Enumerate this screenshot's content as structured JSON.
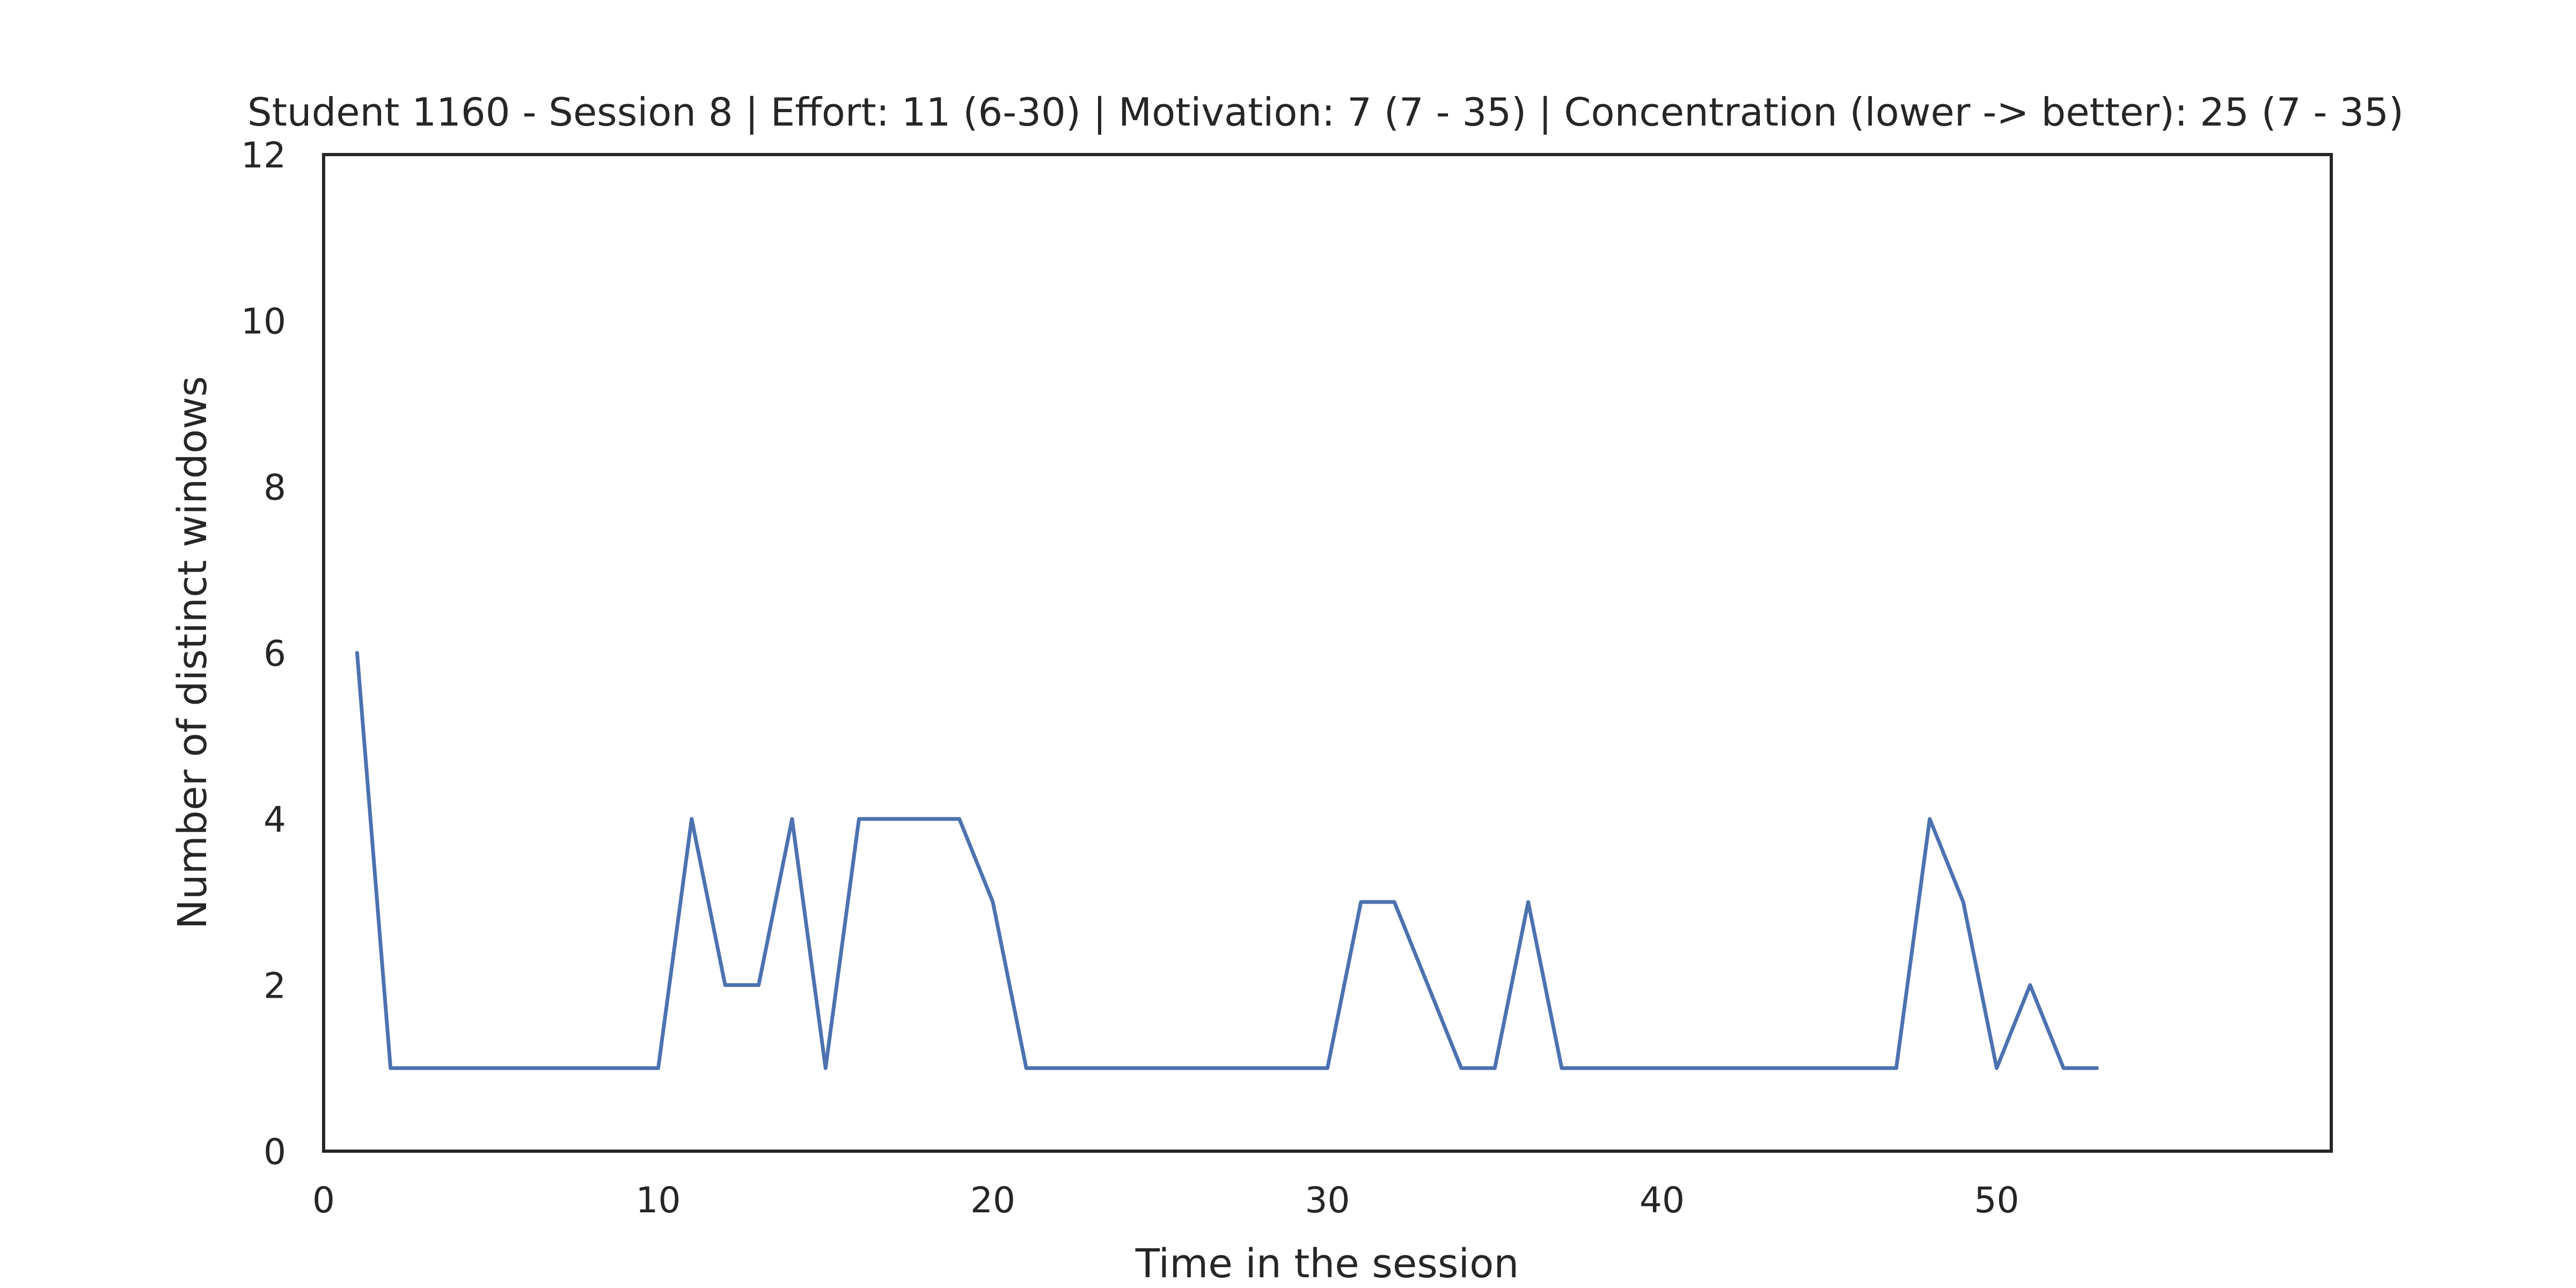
{
  "chart_data": {
    "type": "line",
    "title": "Student 1160 - Session 8 | Effort: 11 (6-30) | Motivation: 7 (7 - 35) | Concentration (lower -> better): 25 (7 - 35)",
    "xlabel": "Time in the session",
    "ylabel": "Number of distinct windows",
    "xlim": [
      0,
      60
    ],
    "ylim": [
      0,
      12
    ],
    "xticks": [
      0,
      10,
      20,
      30,
      40,
      50
    ],
    "yticks": [
      0,
      2,
      4,
      6,
      8,
      10,
      12
    ],
    "grid": false,
    "series": [
      {
        "color": "#4c72b0",
        "x": [
          1,
          2,
          3,
          4,
          5,
          6,
          7,
          8,
          9,
          10,
          11,
          12,
          13,
          14,
          15,
          16,
          17,
          18,
          19,
          20,
          21,
          22,
          23,
          24,
          25,
          26,
          27,
          28,
          29,
          30,
          31,
          32,
          33,
          34,
          35,
          36,
          37,
          38,
          39,
          40,
          41,
          42,
          43,
          44,
          45,
          46,
          47,
          48,
          49,
          50,
          51,
          52,
          53
        ],
        "y": [
          6,
          1,
          1,
          1,
          1,
          1,
          1,
          1,
          1,
          1,
          4,
          2,
          2,
          4,
          1,
          4,
          4,
          4,
          4,
          3,
          1,
          1,
          1,
          1,
          1,
          1,
          1,
          1,
          1,
          1,
          3,
          3,
          2,
          1,
          1,
          3,
          1,
          1,
          1,
          1,
          1,
          1,
          1,
          1,
          1,
          1,
          1,
          4,
          3,
          1,
          2,
          1,
          1
        ]
      }
    ]
  }
}
